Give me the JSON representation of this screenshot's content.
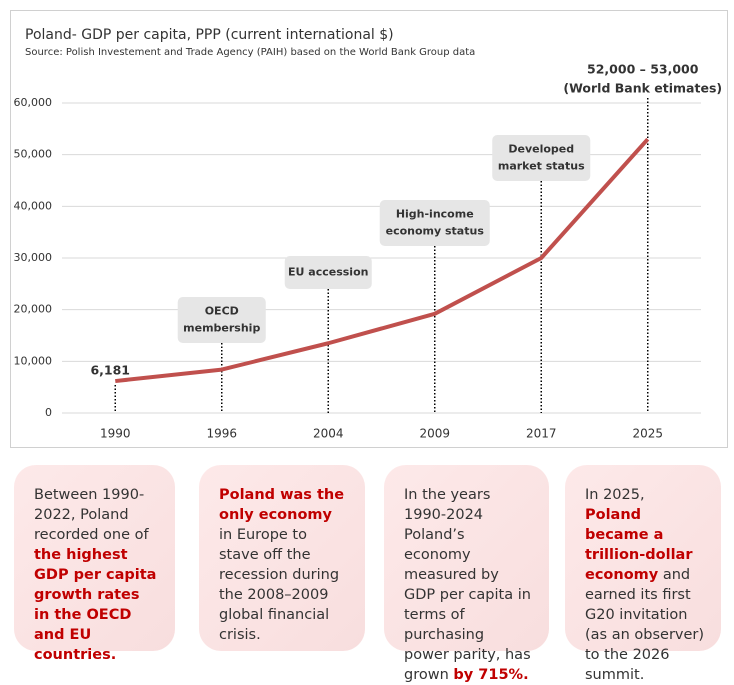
{
  "chart_data": {
    "type": "line",
    "title": "Poland- GDP per capita, PPP (current international $)",
    "subtitle": "Source: Polish Investement and Trade Agency (PAIH) based on the World Bank Group data",
    "categories": [
      "1990",
      "1996",
      "2004",
      "2009",
      "2017",
      "2025"
    ],
    "values": [
      6181,
      8400,
      13500,
      19200,
      30000,
      53000
    ],
    "value_labels": [
      "6,181",
      null,
      null,
      null,
      null,
      "52,000 – 53,000"
    ],
    "estimate_note": "(World Bank etimates)",
    "color": "#c0504d",
    "label_color": "#c00000",
    "ylim": [
      0,
      60000
    ],
    "yticks": [
      0,
      {
        "value": 10000,
        "label": "10,000"
      },
      {
        "value": 20000,
        "label": "20,000"
      },
      {
        "value": 30000,
        "label": "30,000"
      },
      {
        "value": 40000,
        "label": "40,000"
      },
      {
        "value": 50000,
        "label": "50,000"
      },
      {
        "value": 60000,
        "label": "60,000"
      }
    ],
    "grid": true,
    "milestones": [
      {
        "category": "1996",
        "lines": [
          "OECD",
          "membership"
        ]
      },
      {
        "category": "2004",
        "lines": [
          "EU accession"
        ]
      },
      {
        "category": "2009",
        "lines": [
          "High-income",
          "economy status"
        ]
      },
      {
        "category": "2017",
        "lines": [
          "Developed",
          "market status"
        ]
      }
    ]
  },
  "notes": [
    {
      "parts": [
        {
          "text": "Between 1990-2022, Poland recorded one of ",
          "bold": false
        },
        {
          "text": "the highest GDP per capita growth rates in the OECD and EU countries.",
          "bold": true
        }
      ]
    },
    {
      "parts": [
        {
          "text": "Poland was the only economy",
          "bold": true
        },
        {
          "text": " in Europe to stave off the recession during the 2008–2009 global financial crisis.",
          "bold": false
        }
      ]
    },
    {
      "parts": [
        {
          "text": "In the years 1990-2024 Poland’s economy measured by GDP per capita in terms of purchasing power parity, has grown ",
          "bold": false
        },
        {
          "text": "by 715%.",
          "bold": true
        }
      ]
    },
    {
      "parts": [
        {
          "text": "In 2025, ",
          "bold": false
        },
        {
          "text": "Poland became a trillion-dollar economy",
          "bold": true
        },
        {
          "text": " and earned its first G20 invitation (as an observer) to the 2026 summit.",
          "bold": false
        }
      ]
    }
  ]
}
